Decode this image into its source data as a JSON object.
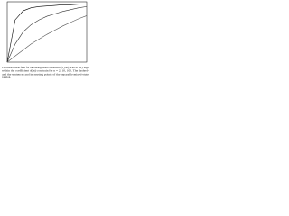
{
  "chart_data": {
    "type": "line",
    "x": [
      0,
      0.1,
      0.2,
      0.3,
      0.4,
      0.5,
      0.6,
      0.7,
      0.8,
      0.9,
      1
    ],
    "series": [
      {
        "color": "#000000",
        "values": [
          0,
          0.7,
          0.85,
          0.9,
          0.92,
          0.93,
          0.94,
          0.95,
          0.95,
          0.96,
          0.96
        ]
      },
      {
        "color": "#333333",
        "values": [
          0,
          0.3,
          0.5,
          0.62,
          0.7,
          0.76,
          0.8,
          0.84,
          0.87,
          0.9,
          0.92
        ]
      },
      {
        "color": "#555555",
        "values": [
          0,
          0.1,
          0.2,
          0.3,
          0.38,
          0.46,
          0.53,
          0.6,
          0.66,
          0.72,
          0.77
        ]
      }
    ],
    "xlim": [
      0,
      1
    ],
    "ylim": [
      0,
      1
    ],
    "caption_lines": [
      "Calculated mean field for the entanglement dimension (d_ent), with m very high",
      "within the coefficient d(m) constrain for n = 2, 10, 100. The dashed-",
      "and the sentences and increasing points of the separable mixed-state",
      "rotation."
    ]
  }
}
